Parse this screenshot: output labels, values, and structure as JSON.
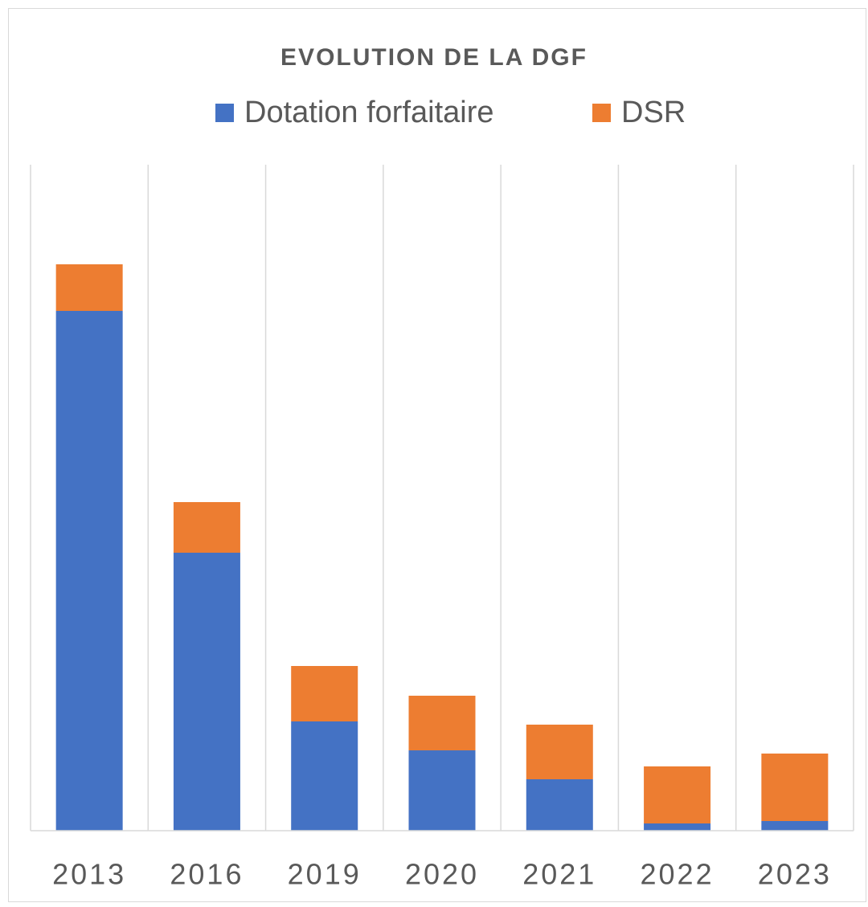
{
  "chart_data": {
    "type": "stacked_bar",
    "title": "EVOLUTION DE LA DGF",
    "categories": [
      "2013",
      "2016",
      "2019",
      "2020",
      "2021",
      "2022",
      "2023"
    ],
    "series": [
      {
        "name": "Dotation forfaitaire",
        "color": "#4472c4",
        "values": [
          647,
          346,
          136,
          100,
          64,
          9,
          12
        ]
      },
      {
        "name": "DSR",
        "color": "#ed7d31",
        "values": [
          58,
          63,
          69,
          68,
          68,
          71,
          84
        ]
      }
    ],
    "ylim": [
      0,
      829
    ],
    "legend": "top"
  }
}
